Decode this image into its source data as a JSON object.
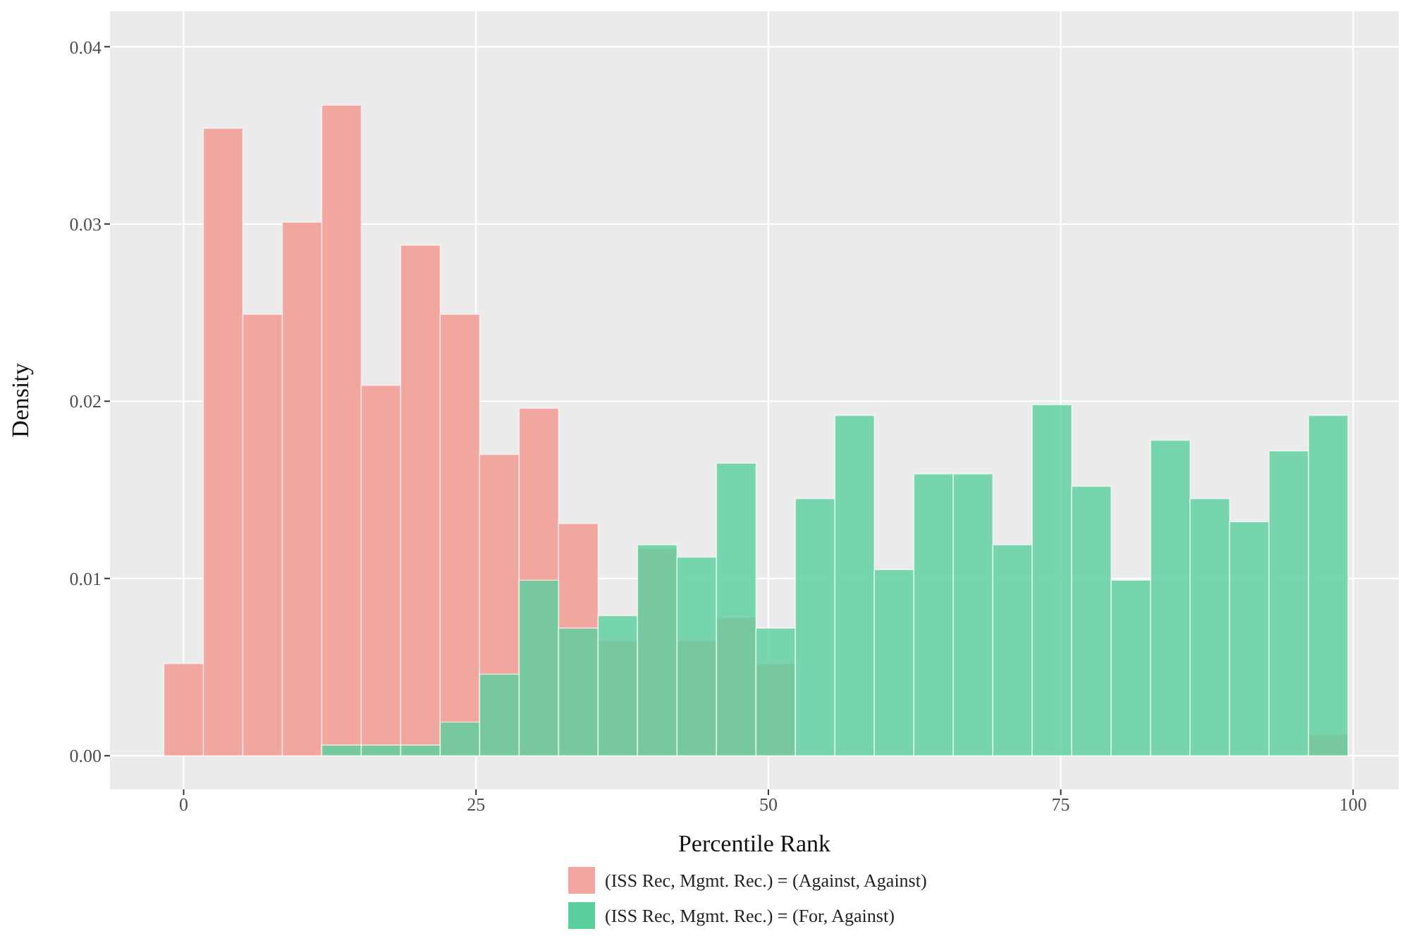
{
  "chart_data": {
    "type": "histogram",
    "xlabel": "Percentile Rank",
    "ylabel": "Density",
    "bins": [
      -1.69,
      1.69,
      5.06,
      8.44,
      11.81,
      15.19,
      18.56,
      21.94,
      25.31,
      28.69,
      32.06,
      35.44,
      38.81,
      42.19,
      45.56,
      48.94,
      52.31,
      55.69,
      59.06,
      62.44,
      65.81,
      69.19,
      72.56,
      75.94,
      79.31,
      82.69,
      86.06,
      89.44,
      92.81,
      96.19,
      99.56
    ],
    "series": [
      {
        "name": "(ISS Rec, Mgmt. Rec.) = (Against, Against)",
        "color": "#f1a6a0",
        "values": [
          0.0052,
          0.0354,
          0.0249,
          0.0301,
          0.0367,
          0.0209,
          0.0288,
          0.0249,
          0.017,
          0.0196,
          0.0131,
          0.0065,
          0.0117,
          0.0065,
          0.0078,
          0.0052,
          0,
          0,
          0,
          0,
          0,
          0,
          0,
          0,
          0,
          0,
          0,
          0,
          0,
          0.0012
        ]
      },
      {
        "name": "(ISS Rec, Mgmt. Rec.) = (For, Against)",
        "color": "#5ccf9f",
        "values": [
          0,
          0,
          0,
          0,
          0.0006,
          0.0006,
          0.0006,
          0.0019,
          0.0046,
          0.0099,
          0.0072,
          0.0079,
          0.0119,
          0.0112,
          0.0165,
          0.0072,
          0.0145,
          0.0192,
          0.0105,
          0.0159,
          0.0159,
          0.0119,
          0.0198,
          0.0152,
          0.0099,
          0.0178,
          0.0145,
          0.0132,
          0.0172,
          0.0192
        ]
      }
    ],
    "xlim": [
      -6.3,
      103.9
    ],
    "xticks": [
      0,
      25,
      50,
      75,
      100
    ],
    "ylim": [
      -0.0019,
      0.042
    ],
    "yticks": [
      {
        "value": 0,
        "label": "0.00"
      },
      {
        "value": 0.01,
        "label": "0.01"
      },
      {
        "value": 0.02,
        "label": "0.02"
      },
      {
        "value": 0.03,
        "label": "0.03"
      },
      {
        "value": 0.04,
        "label": "0.04"
      }
    ],
    "grid": true,
    "legend": "bottom"
  }
}
